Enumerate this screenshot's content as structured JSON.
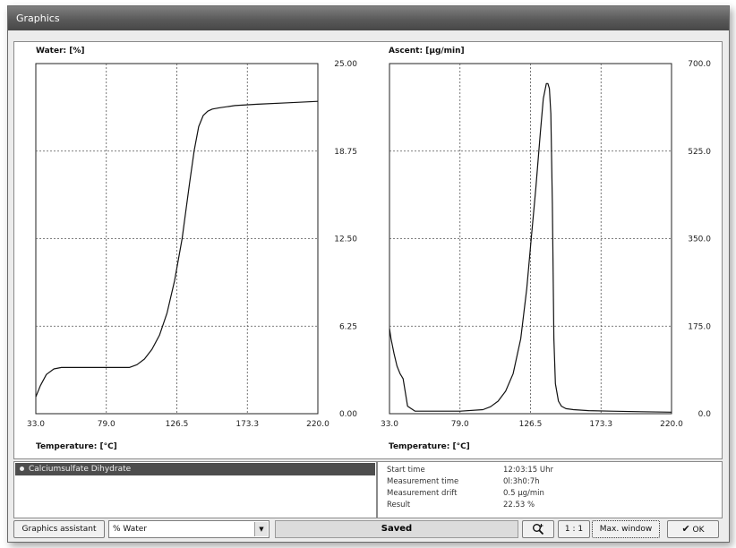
{
  "window": {
    "title": "Graphics"
  },
  "chart_data": [
    {
      "type": "line",
      "title": "Water: [%]",
      "xlabel": "Temperature: [°C]",
      "ylabel": "Water: [%]",
      "xlim": [
        33.0,
        220.0
      ],
      "ylim": [
        0.0,
        25.0
      ],
      "x_ticks": [
        "33.0",
        "79.0",
        "126.5",
        "173.3",
        "220.0"
      ],
      "y_ticks": [
        "0.00",
        "6.25",
        "12.50",
        "18.75",
        "25.00"
      ],
      "grid": true,
      "series": [
        {
          "x": [
            33,
            36,
            40,
            45,
            50,
            60,
            79,
            95,
            100,
            105,
            110,
            115,
            120,
            125,
            130,
            135,
            138,
            141,
            144,
            147,
            150,
            155,
            165,
            180,
            200,
            220
          ],
          "y": [
            1.2,
            2.0,
            2.8,
            3.2,
            3.3,
            3.3,
            3.3,
            3.3,
            3.5,
            3.9,
            4.6,
            5.6,
            7.2,
            9.5,
            12.5,
            16.5,
            18.8,
            20.5,
            21.3,
            21.6,
            21.75,
            21.85,
            22.0,
            22.1,
            22.2,
            22.3
          ]
        }
      ]
    },
    {
      "type": "line",
      "title": "Ascent: [µg/min]",
      "xlabel": "Temperature: [°C]",
      "ylabel": "Ascent: [µg/min]",
      "xlim": [
        33.0,
        220.0
      ],
      "ylim": [
        0.0,
        700.0
      ],
      "x_ticks": [
        "33.0",
        "79.0",
        "126.5",
        "173.3",
        "220.0"
      ],
      "y_ticks": [
        "0.0",
        "175.0",
        "350.0",
        "525.0",
        "700.0"
      ],
      "grid": true,
      "series": [
        {
          "x": [
            33,
            34,
            36,
            38,
            40,
            42,
            45,
            50,
            60,
            80,
            95,
            100,
            105,
            110,
            115,
            120,
            124,
            127,
            130,
            133,
            135,
            137,
            138,
            139,
            140,
            141,
            142,
            143,
            145,
            147,
            150,
            155,
            165,
            180,
            200,
            220
          ],
          "y": [
            170,
            150,
            120,
            95,
            80,
            70,
            15,
            5,
            5,
            5,
            8,
            14,
            25,
            45,
            80,
            150,
            250,
            350,
            450,
            560,
            630,
            660,
            660,
            650,
            600,
            420,
            150,
            60,
            25,
            15,
            10,
            8,
            6,
            5,
            4,
            3
          ]
        }
      ]
    }
  ],
  "sample": {
    "name": "Calciumsulfate Dihydrate"
  },
  "info": {
    "rows": [
      {
        "label": "Start time",
        "value": "12:03:15 Uhr"
      },
      {
        "label": "Measurement time",
        "value": "0l:3h0:7h"
      },
      {
        "label": "Measurement drift",
        "value": "0.5 µg/min"
      },
      {
        "label": "Result",
        "value": "22.53 %"
      }
    ]
  },
  "toolbar": {
    "graphics_assistant_label": "Graphics assistant",
    "select_value": "% Water",
    "status_text": "Saved",
    "zoom_icon": "zoom-icon",
    "ratio_label": "1 : 1",
    "max_window_label": "Max. window",
    "ok_label": "OK",
    "check_icon": "check-icon"
  },
  "colors": {
    "titlebar": "#5a5a5a",
    "sample_row": "#4d4d4d",
    "curve": "#111111",
    "grid": "#555555"
  }
}
